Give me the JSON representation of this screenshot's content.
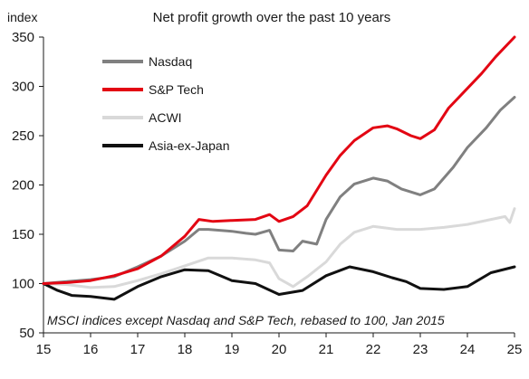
{
  "chart_data": {
    "type": "line",
    "title": "Net profit growth over the past 10 years",
    "ylabel": "index",
    "xlabel": "",
    "xlim": [
      2015,
      2025
    ],
    "ylim": [
      50,
      350
    ],
    "x_ticks": [
      {
        "value": 2015,
        "label": "15"
      },
      {
        "value": 2016,
        "label": "16"
      },
      {
        "value": 2017,
        "label": "17"
      },
      {
        "value": 2018,
        "label": "18"
      },
      {
        "value": 2019,
        "label": "19"
      },
      {
        "value": 2020,
        "label": "20"
      },
      {
        "value": 2021,
        "label": "21"
      },
      {
        "value": 2022,
        "label": "22"
      },
      {
        "value": 2023,
        "label": "23"
      },
      {
        "value": 2024,
        "label": "24"
      },
      {
        "value": 2025,
        "label": "25"
      }
    ],
    "y_ticks": [
      {
        "value": 50,
        "label": "50"
      },
      {
        "value": 100,
        "label": "100"
      },
      {
        "value": 150,
        "label": "150"
      },
      {
        "value": 200,
        "label": "200"
      },
      {
        "value": 250,
        "label": "250"
      },
      {
        "value": 300,
        "label": "300"
      },
      {
        "value": 350,
        "label": "350"
      }
    ],
    "grid": false,
    "legend_position": "top-left",
    "annotation": "MSCI indices except Nasdaq and S&P Tech, rebased to 100, Jan 2015",
    "series": [
      {
        "name": "ACWI",
        "color": "#d9d9d9",
        "points": [
          [
            2015.0,
            100
          ],
          [
            2015.5,
            99
          ],
          [
            2016.0,
            96
          ],
          [
            2016.5,
            97
          ],
          [
            2017.0,
            103
          ],
          [
            2017.5,
            110
          ],
          [
            2018.0,
            118
          ],
          [
            2018.5,
            126
          ],
          [
            2019.0,
            126
          ],
          [
            2019.5,
            124
          ],
          [
            2019.8,
            121
          ],
          [
            2020.0,
            105
          ],
          [
            2020.3,
            97
          ],
          [
            2020.6,
            107
          ],
          [
            2021.0,
            122
          ],
          [
            2021.3,
            140
          ],
          [
            2021.6,
            152
          ],
          [
            2022.0,
            158
          ],
          [
            2022.5,
            155
          ],
          [
            2023.0,
            155
          ],
          [
            2023.5,
            157
          ],
          [
            2024.0,
            160
          ],
          [
            2024.5,
            165
          ],
          [
            2024.8,
            168
          ],
          [
            2024.9,
            162
          ],
          [
            2025.0,
            176
          ]
        ]
      },
      {
        "name": "Asia-ex-Japan",
        "color": "#111111",
        "points": [
          [
            2015.0,
            100
          ],
          [
            2015.3,
            93
          ],
          [
            2015.6,
            88
          ],
          [
            2016.0,
            87
          ],
          [
            2016.5,
            84
          ],
          [
            2017.0,
            97
          ],
          [
            2017.5,
            107
          ],
          [
            2018.0,
            114
          ],
          [
            2018.5,
            113
          ],
          [
            2019.0,
            103
          ],
          [
            2019.5,
            100
          ],
          [
            2020.0,
            89
          ],
          [
            2020.5,
            93
          ],
          [
            2021.0,
            108
          ],
          [
            2021.5,
            117
          ],
          [
            2022.0,
            112
          ],
          [
            2022.4,
            106
          ],
          [
            2022.7,
            102
          ],
          [
            2023.0,
            95
          ],
          [
            2023.5,
            94
          ],
          [
            2024.0,
            97
          ],
          [
            2024.5,
            111
          ],
          [
            2025.0,
            117
          ]
        ]
      },
      {
        "name": "Nasdaq",
        "color": "#808080",
        "points": [
          [
            2015.0,
            100
          ],
          [
            2015.5,
            102
          ],
          [
            2016.0,
            104
          ],
          [
            2016.5,
            107
          ],
          [
            2017.0,
            117
          ],
          [
            2017.5,
            128
          ],
          [
            2018.0,
            143
          ],
          [
            2018.3,
            155
          ],
          [
            2018.5,
            155
          ],
          [
            2019.0,
            153
          ],
          [
            2019.3,
            151
          ],
          [
            2019.5,
            150
          ],
          [
            2019.8,
            154
          ],
          [
            2020.0,
            134
          ],
          [
            2020.3,
            133
          ],
          [
            2020.5,
            143
          ],
          [
            2020.8,
            140
          ],
          [
            2021.0,
            165
          ],
          [
            2021.3,
            188
          ],
          [
            2021.6,
            201
          ],
          [
            2022.0,
            207
          ],
          [
            2022.3,
            204
          ],
          [
            2022.6,
            196
          ],
          [
            2023.0,
            190
          ],
          [
            2023.3,
            196
          ],
          [
            2023.7,
            218
          ],
          [
            2024.0,
            238
          ],
          [
            2024.4,
            258
          ],
          [
            2024.7,
            276
          ],
          [
            2025.0,
            289
          ]
        ]
      },
      {
        "name": "S&P Tech",
        "color": "#e30613",
        "points": [
          [
            2015.0,
            100
          ],
          [
            2015.5,
            101
          ],
          [
            2016.0,
            103
          ],
          [
            2016.5,
            108
          ],
          [
            2017.0,
            115
          ],
          [
            2017.5,
            128
          ],
          [
            2018.0,
            148
          ],
          [
            2018.3,
            165
          ],
          [
            2018.6,
            163
          ],
          [
            2019.0,
            164
          ],
          [
            2019.5,
            165
          ],
          [
            2019.8,
            170
          ],
          [
            2020.0,
            163
          ],
          [
            2020.3,
            168
          ],
          [
            2020.6,
            179
          ],
          [
            2021.0,
            210
          ],
          [
            2021.3,
            230
          ],
          [
            2021.6,
            245
          ],
          [
            2022.0,
            258
          ],
          [
            2022.3,
            260
          ],
          [
            2022.5,
            257
          ],
          [
            2022.8,
            250
          ],
          [
            2023.0,
            247
          ],
          [
            2023.3,
            256
          ],
          [
            2023.6,
            278
          ],
          [
            2024.0,
            298
          ],
          [
            2024.3,
            313
          ],
          [
            2024.6,
            330
          ],
          [
            2025.0,
            350
          ]
        ]
      }
    ],
    "legend_order": [
      "Nasdaq",
      "S&P Tech",
      "ACWI",
      "Asia-ex-Japan"
    ]
  }
}
